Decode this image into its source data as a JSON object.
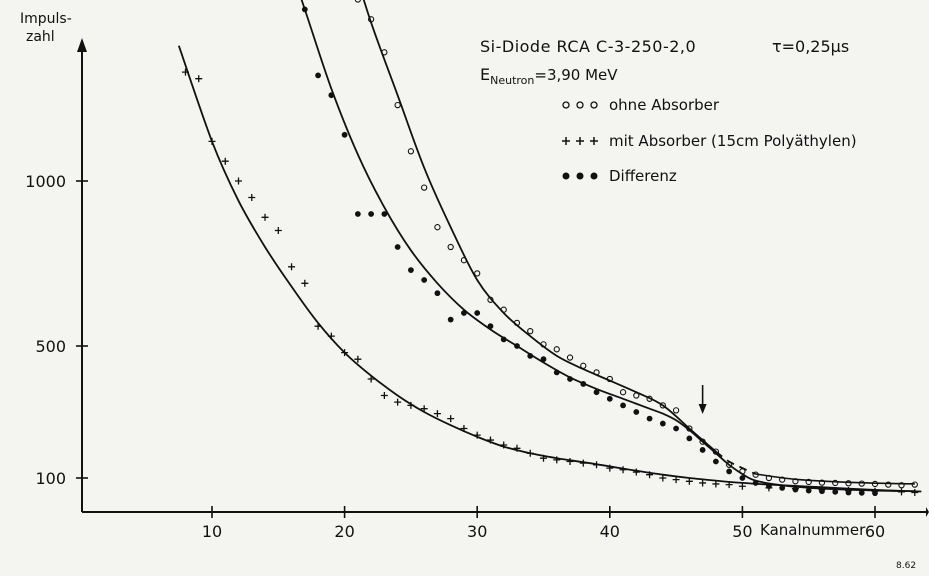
{
  "chart_data": {
    "type": "scatter",
    "title_line1": "Si-Diode  RCA  C-3-250-2,0",
    "tau_label": "τ=0,25μs",
    "energy_prefix": "E",
    "energy_sub": "Neutron",
    "energy_value": "=3,90 MeV",
    "ylabel_line1": "Impuls-",
    "ylabel_line2": "zahl",
    "xlabel": "Kanalnummer",
    "corner_note": "8.62",
    "x_ticks": [
      "10",
      "20",
      "30",
      "40",
      "50",
      "60"
    ],
    "y_ticks": [
      "100",
      "500",
      "1000"
    ],
    "xlim": [
      0,
      64
    ],
    "ylim": [
      0,
      1700
    ],
    "arrow_x": 47,
    "legend": [
      {
        "marker": "open-circle",
        "label": "ohne Absorber"
      },
      {
        "marker": "plus",
        "label": "mit Absorber (15cm Polyäthylen)"
      },
      {
        "marker": "filled-circle",
        "label": "Differenz"
      }
    ],
    "series": [
      {
        "name": "ohne Absorber",
        "marker": "open-circle",
        "points": [
          [
            21,
            1550
          ],
          [
            22,
            1490
          ],
          [
            23,
            1390
          ],
          [
            24,
            1230
          ],
          [
            25,
            1090
          ],
          [
            26,
            980
          ],
          [
            27,
            860
          ],
          [
            28,
            800
          ],
          [
            29,
            760
          ],
          [
            30,
            720
          ],
          [
            31,
            640
          ],
          [
            32,
            610
          ],
          [
            33,
            570
          ],
          [
            34,
            545
          ],
          [
            35,
            505
          ],
          [
            36,
            490
          ],
          [
            37,
            465
          ],
          [
            38,
            440
          ],
          [
            39,
            420
          ],
          [
            40,
            400
          ],
          [
            41,
            360
          ],
          [
            42,
            350
          ],
          [
            43,
            340
          ],
          [
            44,
            320
          ],
          [
            45,
            305
          ],
          [
            46,
            250
          ],
          [
            47,
            210
          ],
          [
            48,
            180
          ],
          [
            49,
            140
          ],
          [
            50,
            120
          ],
          [
            51,
            110
          ],
          [
            52,
            100
          ],
          [
            53,
            95
          ],
          [
            54,
            90
          ],
          [
            55,
            88
          ],
          [
            56,
            86
          ],
          [
            57,
            85
          ],
          [
            58,
            84
          ],
          [
            59,
            83
          ],
          [
            60,
            82
          ],
          [
            61,
            80
          ],
          [
            62,
            78
          ],
          [
            63,
            80
          ]
        ],
        "fit": [
          [
            20.3,
            1700
          ],
          [
            22,
            1480
          ],
          [
            24,
            1260
          ],
          [
            26,
            1040
          ],
          [
            28,
            860
          ],
          [
            30,
            700
          ],
          [
            32,
            600
          ],
          [
            34,
            530
          ],
          [
            36,
            470
          ],
          [
            38,
            430
          ],
          [
            40,
            395
          ],
          [
            42,
            360
          ],
          [
            44,
            320
          ],
          [
            46,
            250
          ],
          [
            47,
            215
          ],
          [
            48,
            180
          ]
        ],
        "fit_dashed": [
          [
            48,
            180
          ],
          [
            49,
            150
          ],
          [
            50,
            130
          ],
          [
            51,
            112
          ]
        ],
        "tail": [
          [
            51,
            112
          ],
          [
            54,
            96
          ],
          [
            58,
            87
          ],
          [
            63,
            82
          ]
        ]
      },
      {
        "name": "mit Absorber (15cm Polyäthylen)",
        "marker": "plus",
        "points": [
          [
            8,
            1330
          ],
          [
            9,
            1310
          ],
          [
            10,
            1120
          ],
          [
            11,
            1060
          ],
          [
            12,
            1000
          ],
          [
            13,
            950
          ],
          [
            14,
            890
          ],
          [
            15,
            850
          ],
          [
            16,
            740
          ],
          [
            17,
            690
          ],
          [
            18,
            560
          ],
          [
            19,
            530
          ],
          [
            20,
            480
          ],
          [
            21,
            460
          ],
          [
            22,
            400
          ],
          [
            23,
            350
          ],
          [
            24,
            330
          ],
          [
            25,
            320
          ],
          [
            26,
            310
          ],
          [
            27,
            295
          ],
          [
            28,
            280
          ],
          [
            29,
            250
          ],
          [
            30,
            230
          ],
          [
            31,
            215
          ],
          [
            32,
            200
          ],
          [
            33,
            190
          ],
          [
            34,
            175
          ],
          [
            35,
            160
          ],
          [
            36,
            155
          ],
          [
            37,
            150
          ],
          [
            38,
            145
          ],
          [
            39,
            140
          ],
          [
            40,
            130
          ],
          [
            41,
            125
          ],
          [
            42,
            118
          ],
          [
            43,
            110
          ],
          [
            44,
            100
          ],
          [
            45,
            95
          ],
          [
            46,
            90
          ],
          [
            47,
            85
          ],
          [
            48,
            82
          ],
          [
            49,
            80
          ],
          [
            50,
            75
          ],
          [
            52,
            70
          ],
          [
            54,
            68
          ],
          [
            56,
            65
          ],
          [
            58,
            62
          ],
          [
            60,
            60
          ],
          [
            62,
            58
          ],
          [
            63,
            56
          ]
        ],
        "fit": [
          [
            7.5,
            1410
          ],
          [
            10,
            1120
          ],
          [
            12,
            940
          ],
          [
            14,
            800
          ],
          [
            16,
            680
          ],
          [
            18,
            570
          ],
          [
            20,
            480
          ],
          [
            22,
            410
          ],
          [
            24,
            350
          ],
          [
            26,
            300
          ],
          [
            28,
            260
          ],
          [
            30,
            225
          ],
          [
            32,
            195
          ],
          [
            34,
            175
          ],
          [
            36,
            160
          ],
          [
            38,
            148
          ],
          [
            40,
            135
          ],
          [
            42,
            122
          ],
          [
            44,
            110
          ],
          [
            46,
            100
          ],
          [
            48,
            92
          ],
          [
            50,
            85
          ],
          [
            52,
            80
          ],
          [
            54,
            76
          ],
          [
            56,
            72
          ],
          [
            58,
            68
          ],
          [
            60,
            64
          ],
          [
            62,
            61
          ],
          [
            63.5,
            59
          ]
        ]
      },
      {
        "name": "Differenz",
        "marker": "filled-circle",
        "points": [
          [
            16,
            1580
          ],
          [
            17,
            1520
          ],
          [
            18,
            1320
          ],
          [
            19,
            1260
          ],
          [
            20,
            1140
          ],
          [
            21,
            900
          ],
          [
            22,
            900
          ],
          [
            23,
            900
          ],
          [
            24,
            800
          ],
          [
            25,
            730
          ],
          [
            26,
            700
          ],
          [
            27,
            660
          ],
          [
            28,
            580
          ],
          [
            29,
            600
          ],
          [
            30,
            600
          ],
          [
            31,
            560
          ],
          [
            32,
            520
          ],
          [
            33,
            500
          ],
          [
            34,
            470
          ],
          [
            35,
            460
          ],
          [
            36,
            420
          ],
          [
            37,
            400
          ],
          [
            38,
            385
          ],
          [
            39,
            360
          ],
          [
            40,
            340
          ],
          [
            41,
            320
          ],
          [
            42,
            300
          ],
          [
            43,
            280
          ],
          [
            44,
            265
          ],
          [
            45,
            250
          ],
          [
            46,
            220
          ],
          [
            47,
            185
          ],
          [
            48,
            150
          ],
          [
            49,
            120
          ],
          [
            50,
            100
          ],
          [
            51,
            85
          ],
          [
            52,
            75
          ],
          [
            53,
            70
          ],
          [
            54,
            65
          ],
          [
            55,
            62
          ],
          [
            56,
            60
          ],
          [
            57,
            58
          ],
          [
            58,
            56
          ],
          [
            59,
            55
          ],
          [
            60,
            54
          ]
        ],
        "fit": [
          [
            15.5,
            1700
          ],
          [
            17,
            1520
          ],
          [
            19,
            1280
          ],
          [
            21,
            1080
          ],
          [
            23,
            920
          ],
          [
            25,
            790
          ],
          [
            27,
            690
          ],
          [
            29,
            610
          ],
          [
            31,
            550
          ],
          [
            33,
            500
          ],
          [
            35,
            450
          ],
          [
            37,
            405
          ],
          [
            39,
            370
          ],
          [
            41,
            340
          ],
          [
            43,
            310
          ],
          [
            44,
            295
          ],
          [
            45,
            275
          ],
          [
            46,
            245
          ],
          [
            47,
            210
          ],
          [
            48,
            175
          ],
          [
            49,
            140
          ],
          [
            50,
            112
          ],
          [
            51,
            92
          ],
          [
            53,
            78
          ],
          [
            56,
            68
          ],
          [
            60,
            62
          ],
          [
            63,
            60
          ]
        ]
      }
    ]
  }
}
